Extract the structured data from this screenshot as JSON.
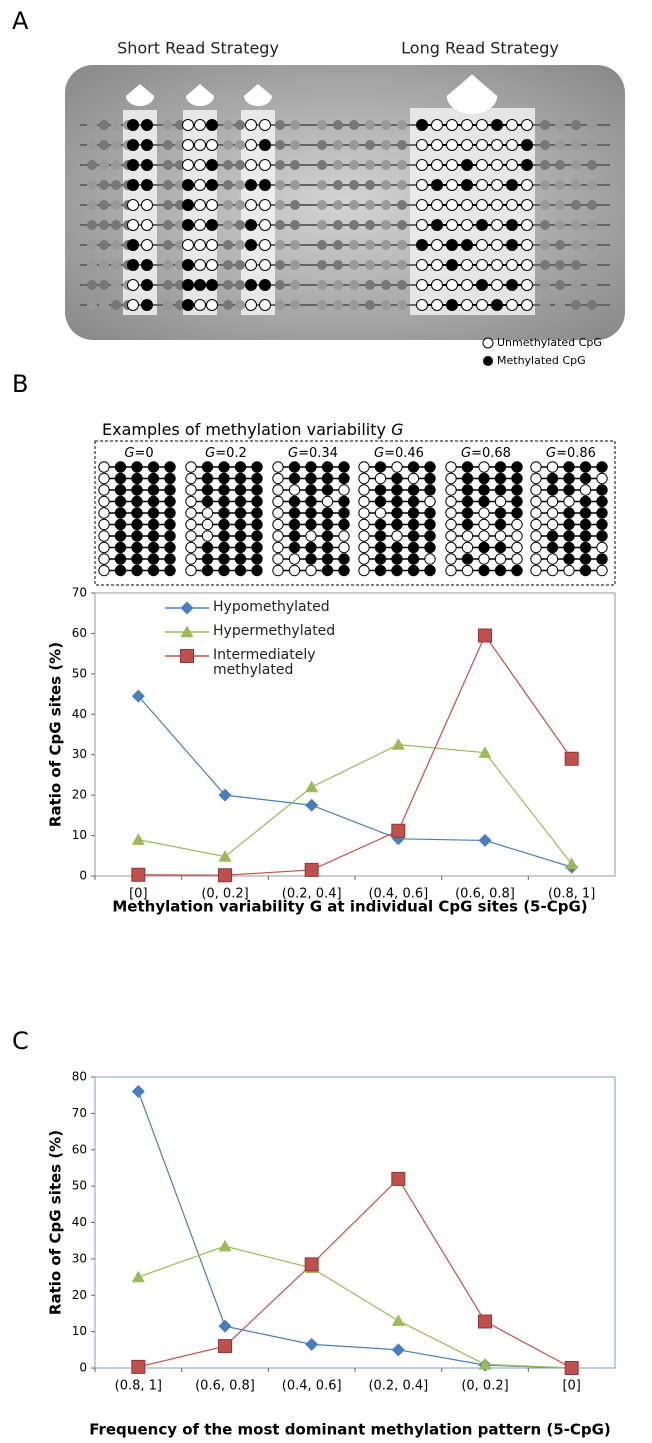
{
  "panel_labels": [
    "A",
    "B",
    "C"
  ],
  "panel_a": {
    "strategies": [
      "Short Read Strategy",
      "Long Read Strategy"
    ],
    "legend": [
      "Unmethylated CpG",
      "Methylated CpG"
    ]
  },
  "examples": {
    "title": "Examples of methylation variability",
    "variable": "G",
    "labels": [
      "=0",
      "=0.2",
      "=0.34",
      "=0.46",
      "=0.68",
      "=0.86"
    ]
  },
  "chart_data": [
    {
      "type": "line",
      "ylabel": "Ratio of CpG sites (%)",
      "xlabel": "Methylation variability G at individual CpG sites (5-CpG)",
      "categories": [
        "[0]",
        "(0, 0.2]",
        "(0.2, 0.4]",
        "(0.4, 0.6]",
        "(0.6, 0.8]",
        "(0.8, 1]"
      ],
      "ylim": [
        0,
        70
      ],
      "yticks": [
        0,
        10,
        20,
        30,
        40,
        50,
        60,
        70
      ],
      "legend": true,
      "series": [
        {
          "name": "Hypomethylated",
          "color": "#4a7ebb",
          "marker": "diamond",
          "values": [
            44.5,
            20,
            17.5,
            9.2,
            8.8,
            2.2
          ]
        },
        {
          "name": "Hypermethylated",
          "color": "#9bbb59",
          "marker": "triangle",
          "values": [
            9,
            4.8,
            22,
            32.5,
            30.5,
            3
          ]
        },
        {
          "name": "Intermediately methylated",
          "color": "#c0504d",
          "marker": "square",
          "values": [
            0.3,
            0.2,
            1.5,
            11.2,
            59.5,
            29
          ]
        }
      ]
    },
    {
      "type": "line",
      "ylabel": "Ratio of CpG sites (%)",
      "xlabel": "Frequency of the most dominant methylation pattern (5-CpG)",
      "categories": [
        "(0.8, 1]",
        "(0.6, 0.8]",
        "(0.4, 0.6]",
        "(0.2, 0.4]",
        "(0, 0.2]",
        "[0]"
      ],
      "ylim": [
        0,
        80
      ],
      "yticks": [
        0,
        10,
        20,
        30,
        40,
        50,
        60,
        70,
        80
      ],
      "legend": false,
      "series": [
        {
          "name": "Hypomethylated",
          "color": "#4a7ebb",
          "marker": "diamond",
          "values": [
            76,
            11.5,
            6.5,
            5,
            0.8,
            0
          ]
        },
        {
          "name": "Hypermethylated",
          "color": "#9bbb59",
          "marker": "triangle",
          "values": [
            25,
            33.5,
            27.5,
            13,
            1,
            0
          ]
        },
        {
          "name": "Intermediately methylated",
          "color": "#c0504d",
          "marker": "square",
          "values": [
            0.3,
            6,
            28.5,
            52,
            12.8,
            0
          ]
        }
      ]
    }
  ]
}
